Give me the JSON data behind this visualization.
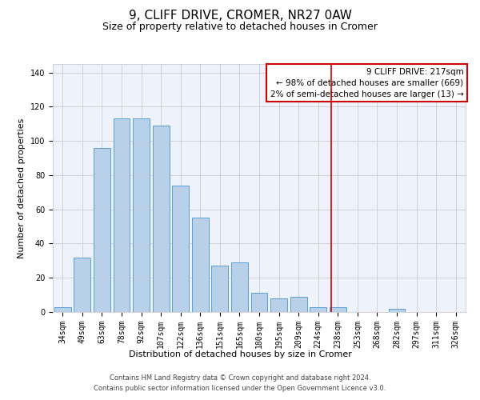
{
  "title": "9, CLIFF DRIVE, CROMER, NR27 0AW",
  "subtitle": "Size of property relative to detached houses in Cromer",
  "xlabel": "Distribution of detached houses by size in Cromer",
  "ylabel": "Number of detached properties",
  "bar_labels": [
    "34sqm",
    "49sqm",
    "63sqm",
    "78sqm",
    "92sqm",
    "107sqm",
    "122sqm",
    "136sqm",
    "151sqm",
    "165sqm",
    "180sqm",
    "195sqm",
    "209sqm",
    "224sqm",
    "238sqm",
    "253sqm",
    "268sqm",
    "282sqm",
    "297sqm",
    "311sqm",
    "326sqm"
  ],
  "bar_values": [
    3,
    32,
    96,
    113,
    113,
    109,
    74,
    55,
    27,
    29,
    11,
    8,
    9,
    3,
    3,
    0,
    0,
    2,
    0,
    0,
    0
  ],
  "bar_color": "#b8d0e8",
  "bar_edge_color": "#5a9fd4",
  "grid_color": "#cccccc",
  "background_color": "#eef2fa",
  "vline_x": 13.67,
  "vline_color": "#cc0000",
  "annotation_box_text": "9 CLIFF DRIVE: 217sqm\n← 98% of detached houses are smaller (669)\n2% of semi-detached houses are larger (13) →",
  "ylim": [
    0,
    145
  ],
  "yticks": [
    0,
    20,
    40,
    60,
    80,
    100,
    120,
    140
  ],
  "footer_line1": "Contains HM Land Registry data © Crown copyright and database right 2024.",
  "footer_line2": "Contains public sector information licensed under the Open Government Licence v3.0.",
  "title_fontsize": 11,
  "subtitle_fontsize": 9,
  "axis_label_fontsize": 8,
  "tick_fontsize": 7,
  "annotation_fontsize": 7.5,
  "footer_fontsize": 6
}
